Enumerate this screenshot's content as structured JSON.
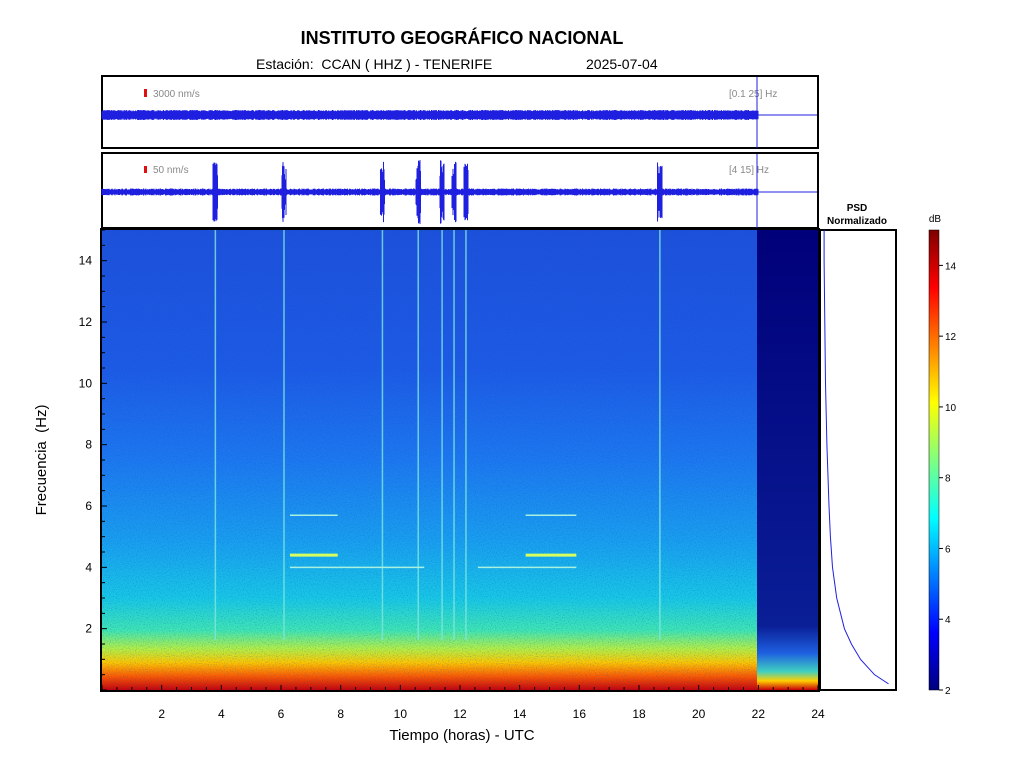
{
  "header": {
    "title": "INSTITUTO GEOGRÁFICO NACIONAL",
    "station_line": "Estación:  CCAN ( HHZ ) - TENERIFE",
    "date": "2025-07-04"
  },
  "traces": [
    {
      "scale_label": "3000 nm/s",
      "band_label": "[0.1 25] Hz"
    },
    {
      "scale_label": "50 nm/s",
      "band_label": "[4 15] Hz"
    }
  ],
  "psd_title": [
    "PSD",
    "Normalizado"
  ],
  "colorbar": {
    "unit": "dB",
    "ticks": [
      2,
      4,
      6,
      8,
      10,
      12,
      14
    ],
    "range": [
      2,
      15
    ]
  },
  "colors": {
    "trace": "#1f1fe0",
    "scale_marker": "#e01010"
  },
  "chart_data": {
    "type": "heatmap",
    "xlabel": "Tiempo (horas) - UTC",
    "ylabel": "Frecuencia  (Hz)",
    "xlim": [
      0,
      24
    ],
    "ylim": [
      0,
      15
    ],
    "xticks": [
      2,
      4,
      6,
      8,
      10,
      12,
      14,
      16,
      18,
      20,
      22,
      24
    ],
    "yticks": [
      2,
      4,
      6,
      8,
      10,
      12,
      14
    ],
    "data_end_hour": 22,
    "vertical_events_hours": [
      3.8,
      6.1,
      9.4,
      10.6,
      11.4,
      11.8,
      12.2,
      18.7
    ],
    "tonal_lines": [
      {
        "freq_hz": 4.4,
        "start_hour": 6.3,
        "end_hour": 7.9
      },
      {
        "freq_hz": 4.4,
        "start_hour": 14.2,
        "end_hour": 15.9
      },
      {
        "freq_hz": 5.7,
        "start_hour": 6.3,
        "end_hour": 7.9
      },
      {
        "freq_hz": 5.7,
        "start_hour": 14.2,
        "end_hour": 15.9
      },
      {
        "freq_hz": 4.0,
        "start_hour": 6.3,
        "end_hour": 10.8
      },
      {
        "freq_hz": 4.0,
        "start_hour": 12.6,
        "end_hour": 15.9
      }
    ],
    "psd_profile": [
      {
        "freq_hz": 0.2,
        "value": 0.95
      },
      {
        "freq_hz": 0.5,
        "value": 0.75
      },
      {
        "freq_hz": 1,
        "value": 0.55
      },
      {
        "freq_hz": 1.5,
        "value": 0.42
      },
      {
        "freq_hz": 2,
        "value": 0.32
      },
      {
        "freq_hz": 3,
        "value": 0.21
      },
      {
        "freq_hz": 4,
        "value": 0.15
      },
      {
        "freq_hz": 5,
        "value": 0.12
      },
      {
        "freq_hz": 6,
        "value": 0.1
      },
      {
        "freq_hz": 8,
        "value": 0.07
      },
      {
        "freq_hz": 10,
        "value": 0.05
      },
      {
        "freq_hz": 12,
        "value": 0.04
      },
      {
        "freq_hz": 14,
        "value": 0.03
      },
      {
        "freq_hz": 15,
        "value": 0.03
      }
    ]
  }
}
